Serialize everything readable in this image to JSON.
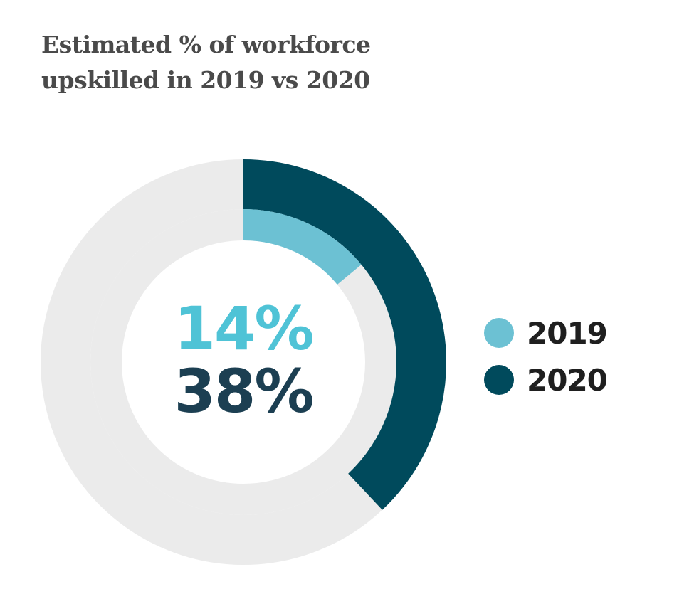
{
  "chart_data": {
    "type": "pie",
    "title": "Estimated % of workforce upskilled in 2019 vs 2020",
    "title_lines": [
      "Estimated % of workforce",
      "upskilled in 2019 vs 2020"
    ],
    "subtype": "concentric-donut",
    "series": [
      {
        "name": "2019",
        "value": 14,
        "label": "14%",
        "color": "#6cc1d3",
        "ring": "inner",
        "center_text_color": "#4fc3d6"
      },
      {
        "name": "2020",
        "value": 38,
        "label": "38%",
        "color": "#004a5c",
        "ring": "outer",
        "center_text_color": "#1c3f52"
      }
    ],
    "track_color": "#ebebeb",
    "legend_position": "right"
  }
}
